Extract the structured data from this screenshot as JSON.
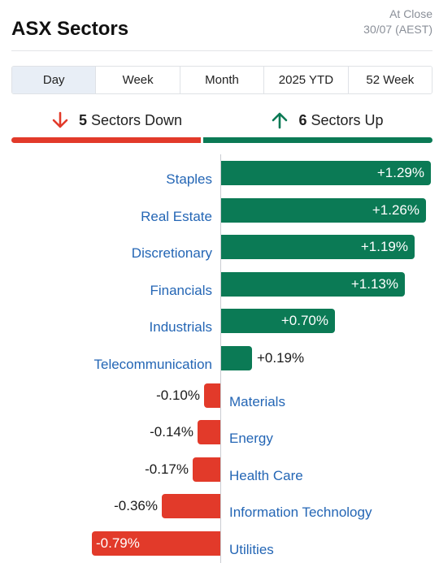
{
  "header": {
    "title": "ASX Sectors",
    "status_line1": "At Close",
    "status_line2": "30/07 (AEST)"
  },
  "tabs": [
    {
      "label": "Day",
      "active": true
    },
    {
      "label": "Week",
      "active": false
    },
    {
      "label": "Month",
      "active": false
    },
    {
      "label": "2025 YTD",
      "active": false
    },
    {
      "label": "52 Week",
      "active": false
    }
  ],
  "summary": {
    "down_count": "5",
    "down_label": "Sectors Down",
    "up_count": "6",
    "up_label": "Sectors Up"
  },
  "colors": {
    "up": "#0b7a55",
    "down": "#e23a2a",
    "link": "#2466b5"
  },
  "chart_data": {
    "type": "bar",
    "orientation": "horizontal",
    "categories": [
      "Staples",
      "Real Estate",
      "Discretionary",
      "Financials",
      "Industrials",
      "Telecommunication",
      "Materials",
      "Energy",
      "Health Care",
      "Information Technology",
      "Utilities"
    ],
    "values": [
      1.29,
      1.26,
      1.19,
      1.13,
      0.7,
      0.19,
      -0.1,
      -0.14,
      -0.17,
      -0.36,
      -0.79
    ],
    "labels": [
      "+1.29%",
      "+1.26%",
      "+1.19%",
      "+1.13%",
      "+0.70%",
      "+0.19%",
      "-0.10%",
      "-0.14%",
      "-0.17%",
      "-0.36%",
      "-0.79%"
    ],
    "unit": "%",
    "grid": false,
    "legend": "none"
  }
}
